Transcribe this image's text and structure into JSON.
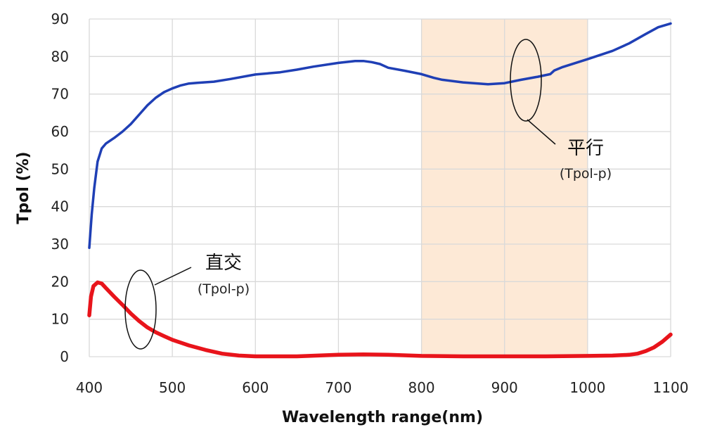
{
  "chart_data": {
    "type": "line",
    "xlabel": "Wavelength range(nm)",
    "ylabel": "Tpol (%)",
    "xlim": [
      400,
      1100
    ],
    "ylim": [
      0,
      90
    ],
    "xticks": [
      400,
      500,
      600,
      700,
      800,
      900,
      1000,
      1100
    ],
    "yticks": [
      0,
      10,
      20,
      30,
      40,
      50,
      60,
      70,
      80,
      90
    ],
    "grid": true,
    "highlight_band": {
      "x": [
        800,
        1000
      ],
      "color": "#fde9d6"
    },
    "series": [
      {
        "color": "#1f3fb5",
        "x": [
          400,
          403,
          406,
          410,
          415,
          420,
          430,
          440,
          450,
          460,
          470,
          480,
          490,
          500,
          510,
          520,
          530,
          550,
          570,
          600,
          630,
          650,
          670,
          700,
          720,
          730,
          740,
          750,
          760,
          780,
          800,
          815,
          825,
          850,
          880,
          900,
          920,
          940,
          955,
          960,
          970,
          1000,
          1030,
          1050,
          1070,
          1085,
          1100
        ],
        "values": [
          29,
          38,
          45,
          52,
          55.5,
          56.8,
          58.3,
          60,
          62,
          64.5,
          67,
          69,
          70.5,
          71.5,
          72.3,
          72.8,
          73,
          73.3,
          74,
          75.2,
          75.8,
          76.5,
          77.3,
          78.3,
          78.8,
          78.8,
          78.5,
          78,
          77,
          76.2,
          75.3,
          74.3,
          73.8,
          73.1,
          72.6,
          72.9,
          73.8,
          74.6,
          75.3,
          76.3,
          77.2,
          79.3,
          81.5,
          83.5,
          86,
          87.8,
          88.8
        ]
      },
      {
        "color": "#e8141b",
        "x": [
          400,
          402,
          405,
          410,
          415,
          420,
          430,
          440,
          450,
          460,
          470,
          480,
          490,
          500,
          520,
          540,
          560,
          580,
          600,
          650,
          700,
          730,
          760,
          800,
          850,
          900,
          950,
          1000,
          1030,
          1050,
          1060,
          1070,
          1080,
          1090,
          1100
        ],
        "values": [
          11,
          16,
          18.8,
          19.8,
          19.5,
          18.3,
          16,
          13.8,
          11.5,
          9.5,
          7.8,
          6.5,
          5.5,
          4.5,
          3,
          1.8,
          0.8,
          0.3,
          0.1,
          0.1,
          0.5,
          0.6,
          0.5,
          0.2,
          0.1,
          0.1,
          0.1,
          0.2,
          0.3,
          0.5,
          0.8,
          1.5,
          2.5,
          4,
          5.9
        ]
      }
    ],
    "annotations": [
      {
        "label": "平行",
        "sub": "(Tpol-p)"
      },
      {
        "label": "直交",
        "sub": "(Tpol-p)"
      }
    ]
  }
}
